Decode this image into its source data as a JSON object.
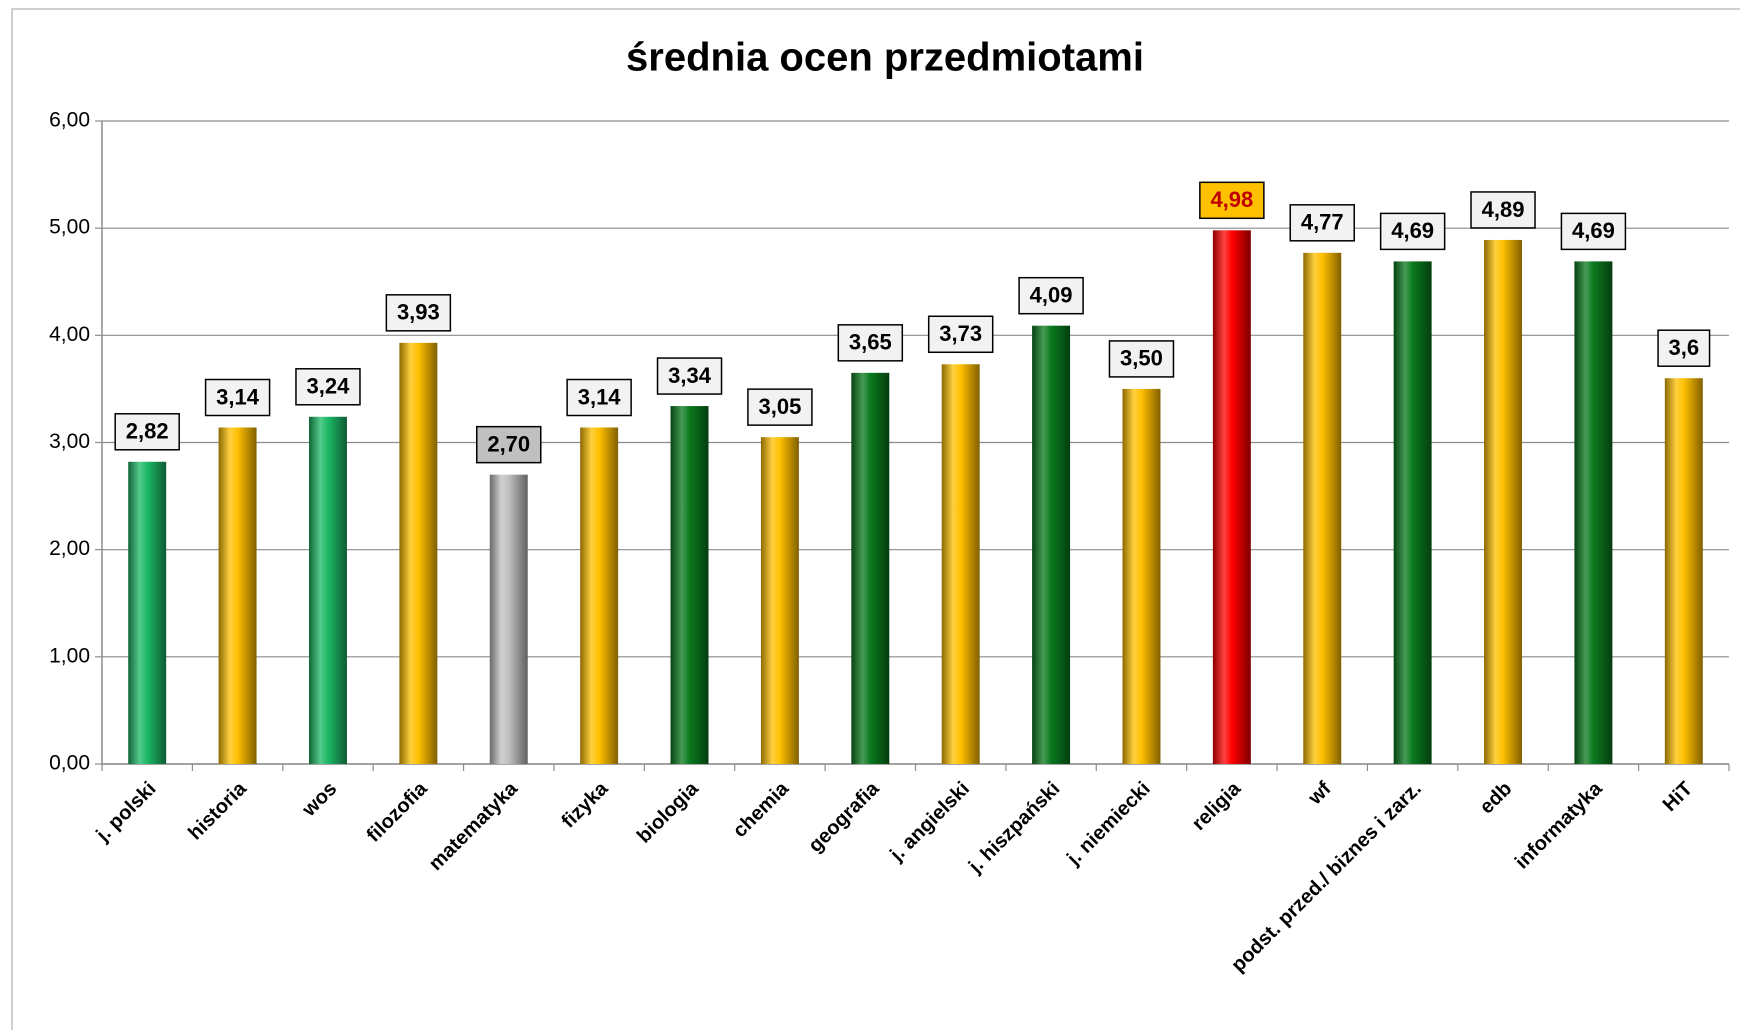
{
  "chart_data": {
    "type": "bar",
    "title": "średnia ocen przedmiotami",
    "categories": [
      "j. polski",
      "historia",
      "wos",
      "filozofia",
      "matematyka",
      "fizyka",
      "biologia",
      "chemia",
      "geografia",
      "j. angielski",
      "j. hiszpański",
      "j. niemiecki",
      "religia",
      "wf",
      "podst. przed./ biznes i zarz.",
      "edb",
      "informatyka",
      "HiT"
    ],
    "values": [
      2.82,
      3.14,
      3.24,
      3.93,
      2.7,
      3.14,
      3.34,
      3.05,
      3.65,
      3.73,
      4.09,
      3.5,
      4.98,
      4.77,
      4.69,
      4.89,
      4.69,
      3.6
    ],
    "value_labels": [
      "2,82",
      "3,14",
      "3,24",
      "3,93",
      "2,70",
      "3,14",
      "3,34",
      "3,05",
      "3,65",
      "3,73",
      "4,09",
      "3,50",
      "4,98",
      "4,77",
      "4,69",
      "4,89",
      "4,69",
      "3,6"
    ],
    "colors": [
      "#1cb866",
      "#ffc000",
      "#1cb866",
      "#ffc000",
      "#c0c0c0",
      "#ffc000",
      "#0a7a1e",
      "#ffc000",
      "#0a7a1e",
      "#ffc000",
      "#0a7a1e",
      "#ffc000",
      "#ff0000",
      "#ffc000",
      "#0a7a1e",
      "#ffc000",
      "#0a7a1e",
      "#ffc000"
    ],
    "label_box_colors": [
      "#f2f2f2",
      "#f2f2f2",
      "#f2f2f2",
      "#f2f2f2",
      "#c0c0c0",
      "#f2f2f2",
      "#f2f2f2",
      "#f2f2f2",
      "#f2f2f2",
      "#f2f2f2",
      "#f2f2f2",
      "#f2f2f2",
      "#ffc000",
      "#f2f2f2",
      "#f2f2f2",
      "#f2f2f2",
      "#f2f2f2",
      "#f2f2f2"
    ],
    "label_text_colors": [
      "#000000",
      "#000000",
      "#000000",
      "#000000",
      "#000000",
      "#000000",
      "#000000",
      "#000000",
      "#000000",
      "#000000",
      "#000000",
      "#000000",
      "#c00000",
      "#000000",
      "#000000",
      "#000000",
      "#000000",
      "#000000"
    ],
    "ylim": [
      0,
      6
    ],
    "yticks": [
      {
        "value": 0,
        "label": "0,00"
      },
      {
        "value": 1,
        "label": "1,00"
      },
      {
        "value": 2,
        "label": "2,00"
      },
      {
        "value": 3,
        "label": "3,00"
      },
      {
        "value": 4,
        "label": "4,00"
      },
      {
        "value": 5,
        "label": "5,00"
      },
      {
        "value": 6,
        "label": "6,00"
      }
    ],
    "grid": true
  }
}
